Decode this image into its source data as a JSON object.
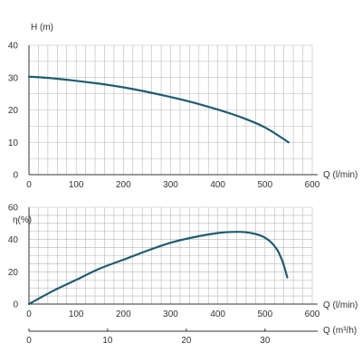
{
  "chart_data": [
    {
      "id": "head",
      "type": "line",
      "ylabel": "H (m)",
      "xlabel": "Q (l/min)",
      "xlim": [
        0,
        600
      ],
      "ylim": [
        0,
        40
      ],
      "x_ticks": [
        "0",
        "100",
        "200",
        "300",
        "400",
        "500",
        "600"
      ],
      "y_ticks": [
        "0",
        "10",
        "20",
        "30",
        "40"
      ],
      "grid": true,
      "series": [
        {
          "x": [
            0,
            50,
            100,
            150,
            200,
            250,
            300,
            350,
            400,
            450,
            500,
            550
          ],
          "y": [
            30.3,
            29.8,
            29.0,
            28.1,
            27.0,
            25.6,
            24.0,
            22.2,
            20.1,
            17.7,
            14.6,
            10.0
          ]
        }
      ]
    },
    {
      "id": "efficiency",
      "type": "line",
      "ylabel": "η(%)",
      "xlabel": "Q (l/min)",
      "xlim": [
        0,
        600
      ],
      "ylim": [
        0,
        60
      ],
      "x_ticks": [
        "0",
        "100",
        "200",
        "300",
        "400",
        "500",
        "600"
      ],
      "y_ticks": [
        "0",
        "20",
        "40",
        "60"
      ],
      "secondary_x": {
        "label": "Q (m³/h)",
        "lim": [
          0,
          36
        ],
        "ticks": [
          "0",
          "10",
          "20",
          "30"
        ]
      },
      "grid": true,
      "series": [
        {
          "x": [
            0,
            50,
            100,
            150,
            200,
            250,
            300,
            350,
            400,
            430,
            460,
            490,
            510,
            525,
            535,
            542,
            547
          ],
          "y": [
            0,
            8,
            15,
            22,
            27.5,
            33,
            38,
            41.5,
            44,
            44.7,
            44.5,
            42.5,
            39,
            34,
            28,
            22,
            16.5
          ]
        }
      ]
    }
  ],
  "colors": {
    "curve": "#1f5c73",
    "grid": "#b8b8b8",
    "axis": "#333333"
  }
}
